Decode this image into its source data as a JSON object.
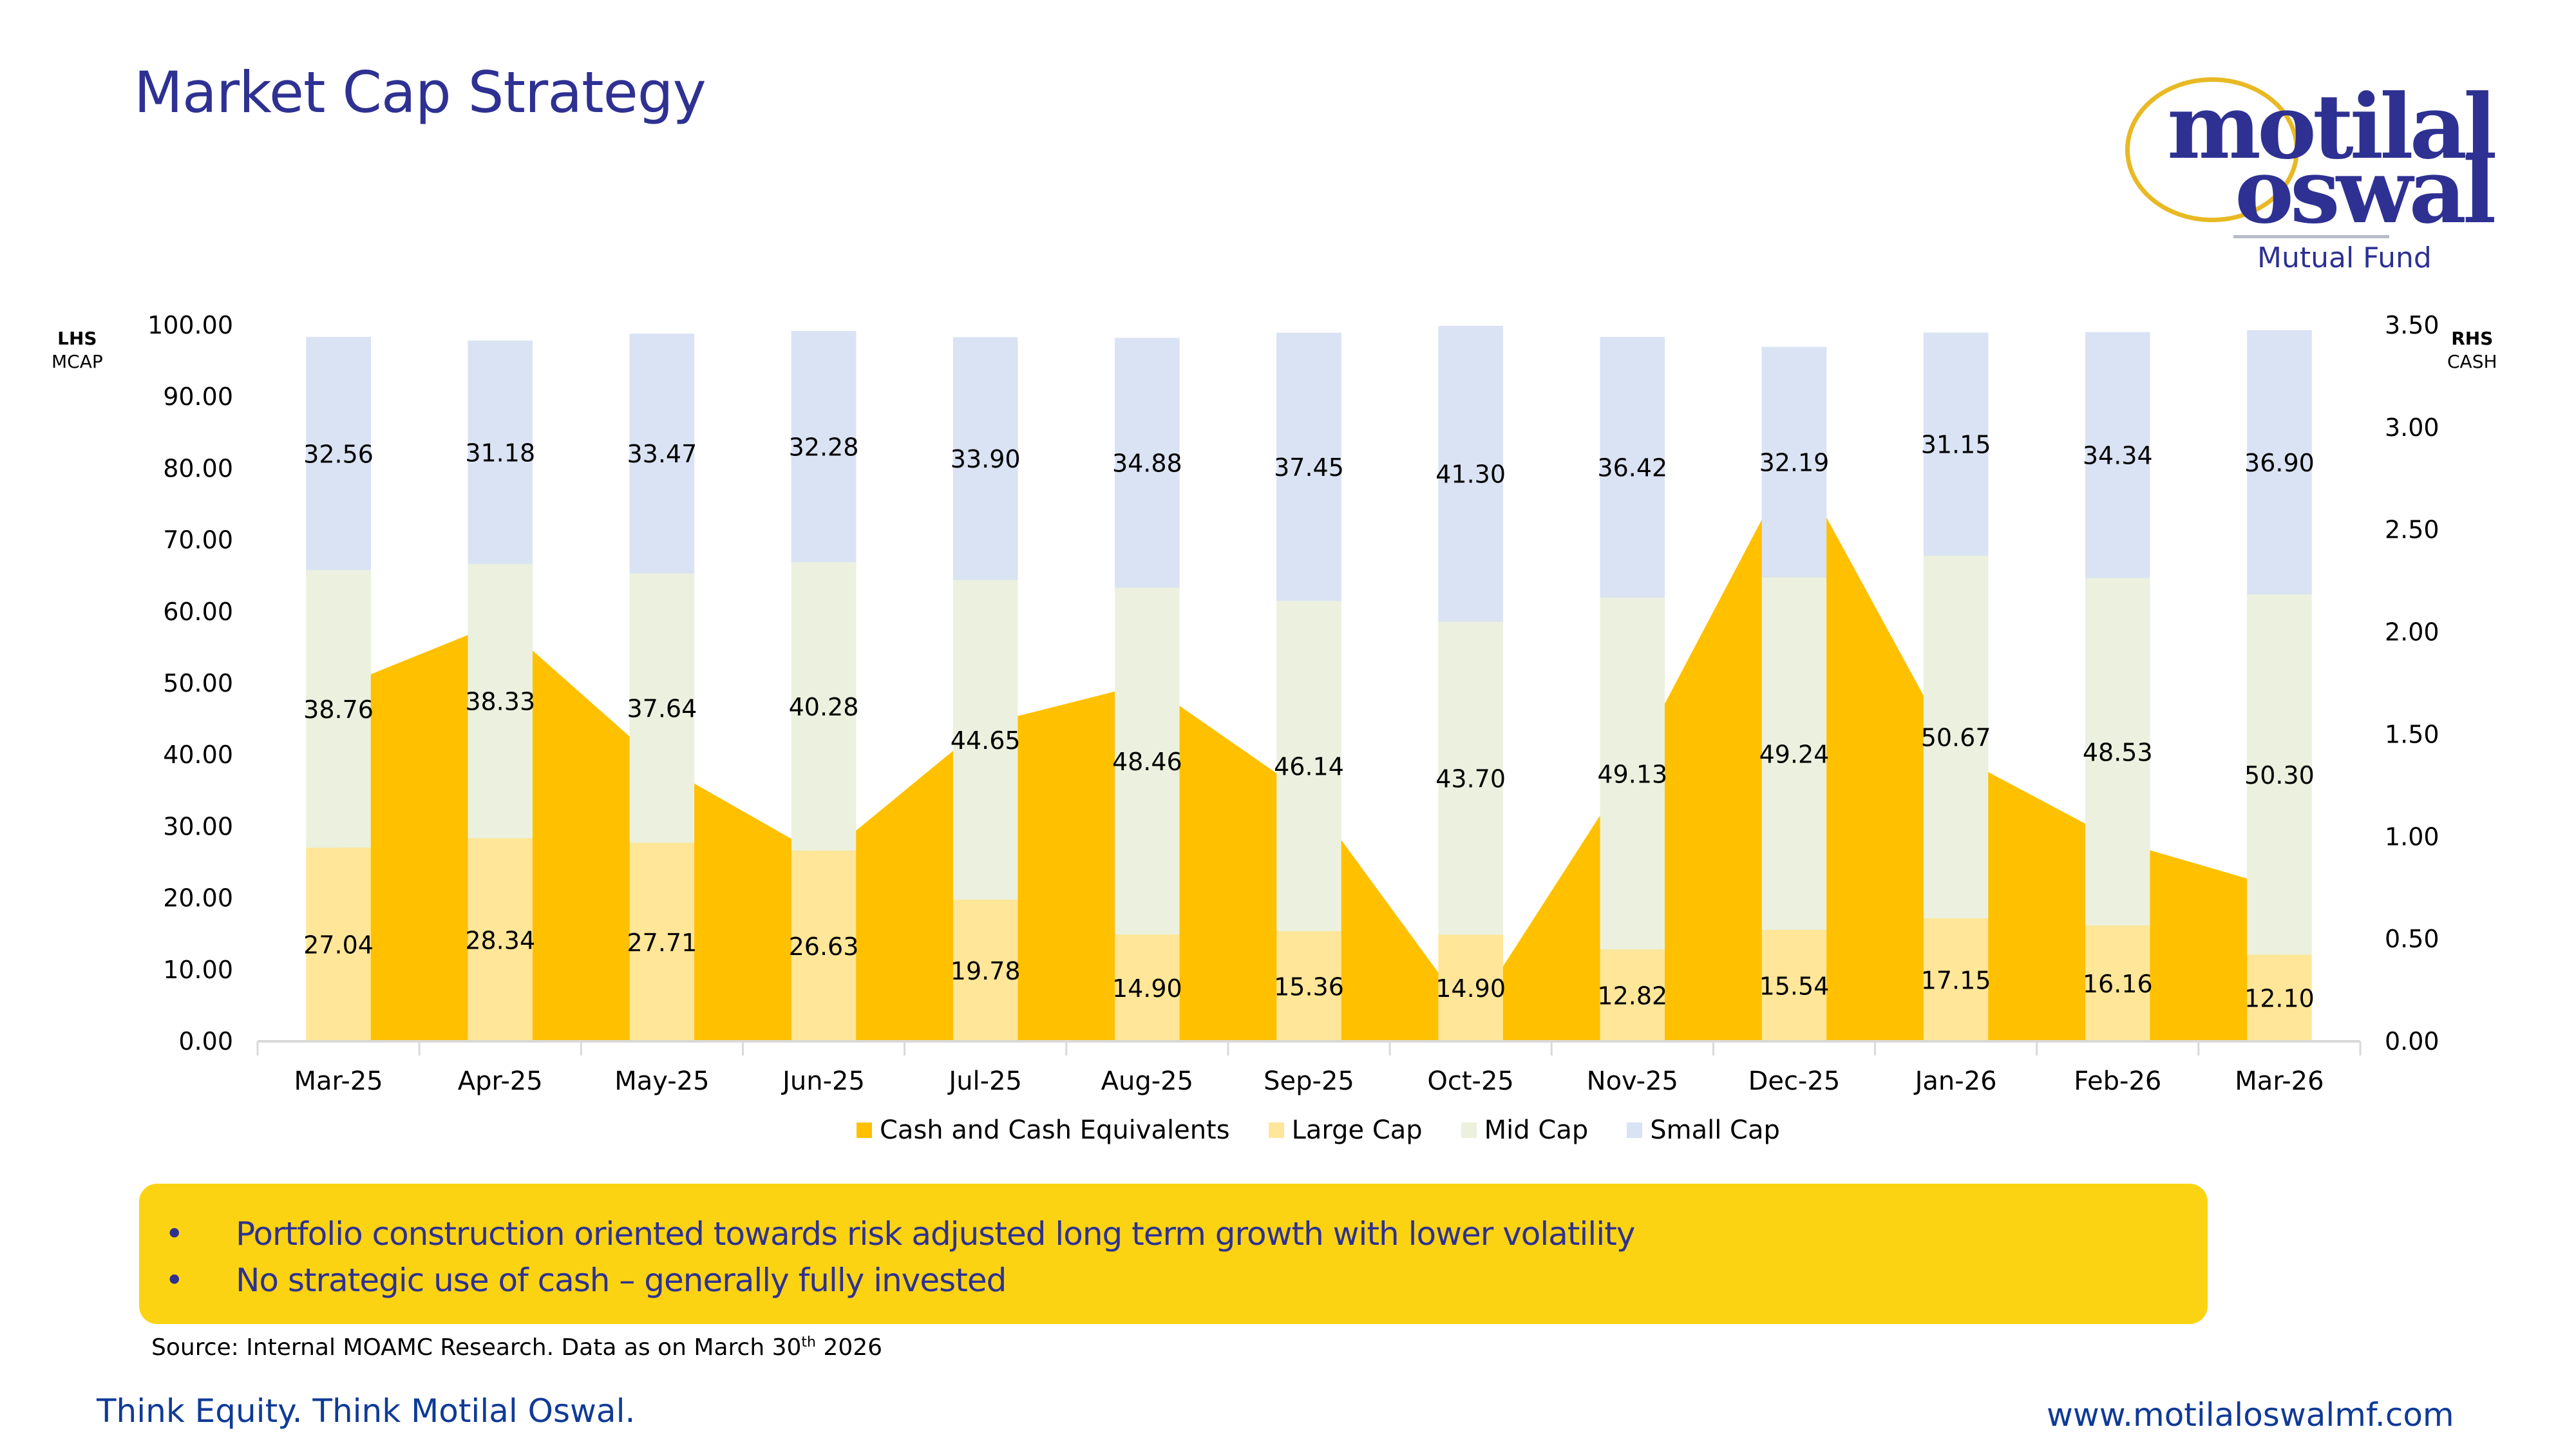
{
  "page": {
    "title": "Market Cap Strategy",
    "logo": {
      "line1": "motilal",
      "line2": "oswal",
      "sub": "Mutual Fund"
    },
    "lhs_axis_title": {
      "bold": "LHS",
      "sub": "MCAP"
    },
    "rhs_axis_title": {
      "bold": "RHS",
      "sub": "CASH"
    },
    "callout": {
      "bullets": [
        "Portfolio construction oriented towards risk adjusted long term growth with lower volatility",
        "No strategic use of cash – generally fully invested"
      ],
      "bullet_symbol": "•"
    },
    "source": {
      "text": "Source: Internal MOAMC Research.  Data as on March 30",
      "sup": "th",
      "year": "  2026"
    },
    "tagline": "Think Equity. Think Motilal Oswal.",
    "website": "www.motilaloswalmf.com",
    "colors": {
      "title": "#2e3192",
      "cash": "#ffc000",
      "large_cap": "#ffe699",
      "mid_cap": "#ebf1de",
      "small_cap": "#dae3f3",
      "callout_bg": "#fbd313",
      "footer_text": "#0f3a97"
    }
  },
  "chart_data": {
    "type": "bar",
    "subtype": "stacked bar (LHS) + area (RHS)",
    "title": "Market Cap Strategy",
    "categories": [
      "Mar-25",
      "Apr-25",
      "May-25",
      "Jun-25",
      "Jul-25",
      "Aug-25",
      "Sep-25",
      "Oct-25",
      "Nov-25",
      "Dec-25",
      "Jan-26",
      "Feb-26",
      "Mar-26"
    ],
    "ylabel_left": "LHS MCAP",
    "ylabel_right": "RHS CASH",
    "ylim_left": [
      0,
      100
    ],
    "ylim_right": [
      0,
      3.5
    ],
    "yticks_left": [
      "0.00",
      "10.00",
      "20.00",
      "30.00",
      "40.00",
      "50.00",
      "60.00",
      "70.00",
      "80.00",
      "90.00",
      "100.00"
    ],
    "yticks_right": [
      "0.00",
      "0.50",
      "1.00",
      "1.50",
      "2.00",
      "2.50",
      "3.00",
      "3.50"
    ],
    "grid": false,
    "legend_position": "bottom",
    "series": [
      {
        "name": "Cash and Cash Equivalents",
        "type": "area",
        "axis": "right",
        "values": [
          1.73,
          2.05,
          1.35,
          0.9,
          1.55,
          1.75,
          1.2,
          0.12,
          1.35,
          2.85,
          1.4,
          0.98,
          0.75
        ],
        "labels_shown": false,
        "estimated": true
      },
      {
        "name": "Large Cap",
        "type": "bar",
        "axis": "left",
        "values": [
          27.04,
          28.34,
          27.71,
          26.63,
          19.78,
          14.9,
          15.36,
          14.9,
          12.82,
          15.54,
          17.15,
          16.16,
          12.1
        ],
        "labels": [
          "27.04",
          "28.34",
          "27.71",
          "26.63",
          "19.78",
          "14.90",
          "15.36",
          "14.90",
          "12.82",
          "15.54",
          "17.15",
          "16.16",
          "12.10"
        ]
      },
      {
        "name": "Mid Cap",
        "type": "bar",
        "axis": "left",
        "values": [
          38.76,
          38.33,
          37.64,
          40.28,
          44.65,
          48.46,
          46.14,
          43.7,
          49.13,
          49.24,
          50.67,
          48.53,
          50.3
        ],
        "labels": [
          "38.76",
          "38.33",
          "37.64",
          "40.28",
          "44.65",
          "48.46",
          "46.14",
          "43.70",
          "49.13",
          "49.24",
          "50.67",
          "48.53",
          "50.30"
        ]
      },
      {
        "name": "Small Cap",
        "type": "bar",
        "axis": "left",
        "values": [
          32.56,
          31.18,
          33.47,
          32.28,
          33.9,
          34.88,
          37.45,
          41.3,
          36.42,
          32.19,
          31.15,
          34.34,
          36.9
        ],
        "labels": [
          "32.56",
          "31.18",
          "33.47",
          "32.28",
          "33.90",
          "34.88",
          "37.45",
          "41.30",
          "36.42",
          "32.19",
          "31.15",
          "34.34",
          "36.90"
        ]
      }
    ]
  }
}
